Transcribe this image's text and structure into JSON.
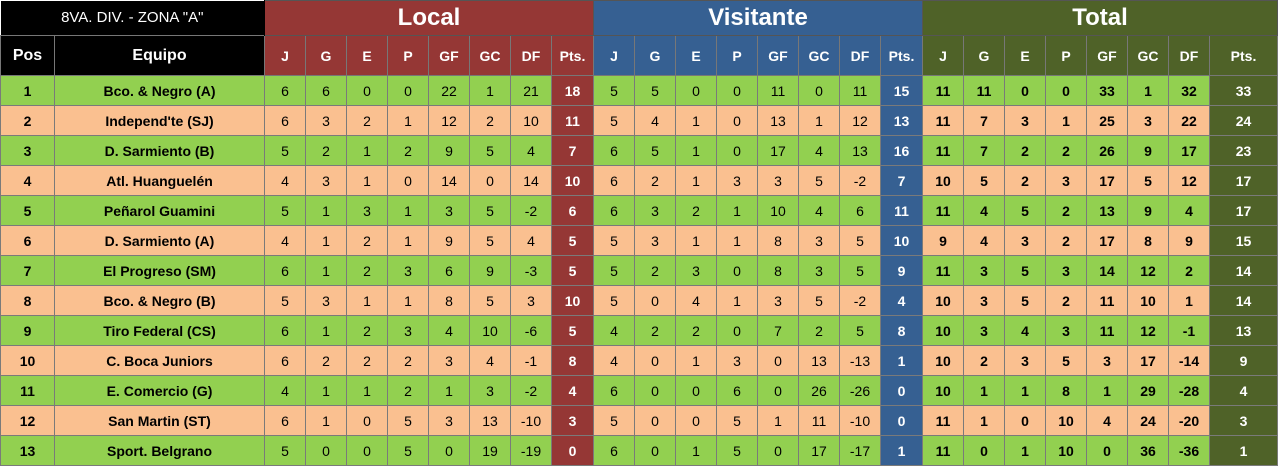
{
  "title": "8VA. DIV. - ZONA \"A\"",
  "groups": {
    "local": "Local",
    "visitante": "Visitante",
    "total": "Total"
  },
  "headers": {
    "pos": "Pos",
    "equipo": "Equipo",
    "stats": [
      "J",
      "G",
      "E",
      "P",
      "GF",
      "GC",
      "DF",
      "Pts."
    ]
  },
  "colors": {
    "local": "#953735",
    "visitante": "#366092",
    "total": "#4f6228",
    "green_row": "#92d050",
    "orange_row": "#fac090"
  },
  "rows": [
    {
      "pos": "1",
      "team": "Bco. & Negro (A)",
      "local": [
        "6",
        "6",
        "0",
        "0",
        "22",
        "1",
        "21",
        "18"
      ],
      "vis": [
        "5",
        "5",
        "0",
        "0",
        "11",
        "0",
        "11",
        "15"
      ],
      "tot": [
        "11",
        "11",
        "0",
        "0",
        "33",
        "1",
        "32",
        "33"
      ]
    },
    {
      "pos": "2",
      "team": "Independ'te (SJ)",
      "local": [
        "6",
        "3",
        "2",
        "1",
        "12",
        "2",
        "10",
        "11"
      ],
      "vis": [
        "5",
        "4",
        "1",
        "0",
        "13",
        "1",
        "12",
        "13"
      ],
      "tot": [
        "11",
        "7",
        "3",
        "1",
        "25",
        "3",
        "22",
        "24"
      ]
    },
    {
      "pos": "3",
      "team": "D. Sarmiento (B)",
      "local": [
        "5",
        "2",
        "1",
        "2",
        "9",
        "5",
        "4",
        "7"
      ],
      "vis": [
        "6",
        "5",
        "1",
        "0",
        "17",
        "4",
        "13",
        "16"
      ],
      "tot": [
        "11",
        "7",
        "2",
        "2",
        "26",
        "9",
        "17",
        "23"
      ]
    },
    {
      "pos": "4",
      "team": "Atl. Huanguelén",
      "local": [
        "4",
        "3",
        "1",
        "0",
        "14",
        "0",
        "14",
        "10"
      ],
      "vis": [
        "6",
        "2",
        "1",
        "3",
        "3",
        "5",
        "-2",
        "7"
      ],
      "tot": [
        "10",
        "5",
        "2",
        "3",
        "17",
        "5",
        "12",
        "17"
      ]
    },
    {
      "pos": "5",
      "team": "Peñarol Guamini",
      "local": [
        "5",
        "1",
        "3",
        "1",
        "3",
        "5",
        "-2",
        "6"
      ],
      "vis": [
        "6",
        "3",
        "2",
        "1",
        "10",
        "4",
        "6",
        "11"
      ],
      "tot": [
        "11",
        "4",
        "5",
        "2",
        "13",
        "9",
        "4",
        "17"
      ]
    },
    {
      "pos": "6",
      "team": "D. Sarmiento (A)",
      "local": [
        "4",
        "1",
        "2",
        "1",
        "9",
        "5",
        "4",
        "5"
      ],
      "vis": [
        "5",
        "3",
        "1",
        "1",
        "8",
        "3",
        "5",
        "10"
      ],
      "tot": [
        "9",
        "4",
        "3",
        "2",
        "17",
        "8",
        "9",
        "15"
      ]
    },
    {
      "pos": "7",
      "team": "El Progreso (SM)",
      "local": [
        "6",
        "1",
        "2",
        "3",
        "6",
        "9",
        "-3",
        "5"
      ],
      "vis": [
        "5",
        "2",
        "3",
        "0",
        "8",
        "3",
        "5",
        "9"
      ],
      "tot": [
        "11",
        "3",
        "5",
        "3",
        "14",
        "12",
        "2",
        "14"
      ]
    },
    {
      "pos": "8",
      "team": "Bco. & Negro (B)",
      "local": [
        "5",
        "3",
        "1",
        "1",
        "8",
        "5",
        "3",
        "10"
      ],
      "vis": [
        "5",
        "0",
        "4",
        "1",
        "3",
        "5",
        "-2",
        "4"
      ],
      "tot": [
        "10",
        "3",
        "5",
        "2",
        "11",
        "10",
        "1",
        "14"
      ]
    },
    {
      "pos": "9",
      "team": "Tiro Federal (CS)",
      "local": [
        "6",
        "1",
        "2",
        "3",
        "4",
        "10",
        "-6",
        "5"
      ],
      "vis": [
        "4",
        "2",
        "2",
        "0",
        "7",
        "2",
        "5",
        "8"
      ],
      "tot": [
        "10",
        "3",
        "4",
        "3",
        "11",
        "12",
        "-1",
        "13"
      ]
    },
    {
      "pos": "10",
      "team": "C. Boca Juniors",
      "local": [
        "6",
        "2",
        "2",
        "2",
        "3",
        "4",
        "-1",
        "8"
      ],
      "vis": [
        "4",
        "0",
        "1",
        "3",
        "0",
        "13",
        "-13",
        "1"
      ],
      "tot": [
        "10",
        "2",
        "3",
        "5",
        "3",
        "17",
        "-14",
        "9"
      ]
    },
    {
      "pos": "11",
      "team": "E. Comercio (G)",
      "local": [
        "4",
        "1",
        "1",
        "2",
        "1",
        "3",
        "-2",
        "4"
      ],
      "vis": [
        "6",
        "0",
        "0",
        "6",
        "0",
        "26",
        "-26",
        "0"
      ],
      "tot": [
        "10",
        "1",
        "1",
        "8",
        "1",
        "29",
        "-28",
        "4"
      ]
    },
    {
      "pos": "12",
      "team": "San Martin (ST)",
      "local": [
        "6",
        "1",
        "0",
        "5",
        "3",
        "13",
        "-10",
        "3"
      ],
      "vis": [
        "5",
        "0",
        "0",
        "5",
        "1",
        "11",
        "-10",
        "0"
      ],
      "tot": [
        "11",
        "1",
        "0",
        "10",
        "4",
        "24",
        "-20",
        "3"
      ]
    },
    {
      "pos": "13",
      "team": "Sport. Belgrano",
      "local": [
        "5",
        "0",
        "0",
        "5",
        "0",
        "19",
        "-19",
        "0"
      ],
      "vis": [
        "6",
        "0",
        "1",
        "5",
        "0",
        "17",
        "-17",
        "1"
      ],
      "tot": [
        "11",
        "0",
        "1",
        "10",
        "0",
        "36",
        "-36",
        "1"
      ]
    }
  ]
}
